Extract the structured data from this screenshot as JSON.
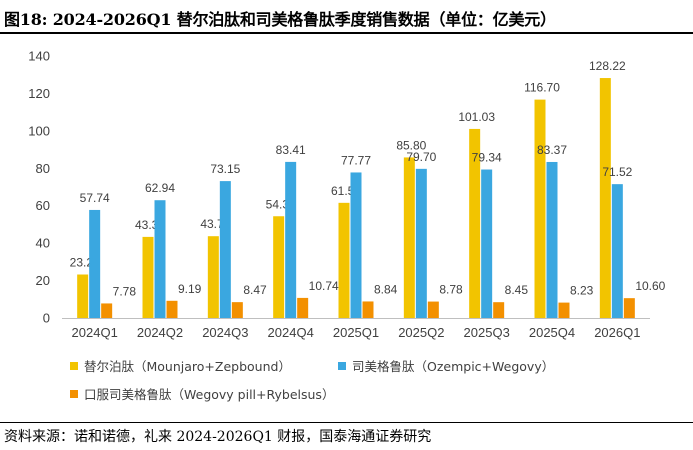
{
  "header": {
    "title": "图18:  2024-2026Q1 替尔泊肽和司美格鲁肽季度销售数据（单位：亿美元）"
  },
  "footer": {
    "source": "资料来源：诺和诺德，礼来 2024-2026Q1 财报，国泰海通证券研究"
  },
  "chart_data": {
    "type": "bar",
    "title": "",
    "xlabel": "",
    "ylabel": "",
    "ylim": [
      0,
      140
    ],
    "yticks": [
      0,
      20,
      40,
      60,
      80,
      100,
      120,
      140
    ],
    "grid": false,
    "legend_position": "bottom",
    "categories": [
      "2024Q1",
      "2024Q2",
      "2024Q3",
      "2024Q4",
      "2025Q1",
      "2025Q2",
      "2025Q3",
      "2025Q4",
      "2026Q1"
    ],
    "series": [
      {
        "name": "替尔泊肽（Mounjaro+Zepbound）",
        "color": "#f2c400",
        "values": [
          23.24,
          43.34,
          43.71,
          54.37,
          61.54,
          85.8,
          101.03,
          116.7,
          128.22
        ]
      },
      {
        "name": "司美格鲁肽（Ozempic+Wegovy）",
        "color": "#3aa7e0",
        "values": [
          57.74,
          62.94,
          73.15,
          83.41,
          77.77,
          79.7,
          79.34,
          83.37,
          71.52
        ]
      },
      {
        "name": "口服司美格鲁肽（Wegovy pill+Rybelsus）",
        "color": "#f39000",
        "values": [
          7.78,
          9.19,
          8.47,
          10.74,
          8.84,
          8.78,
          8.45,
          8.23,
          10.6
        ]
      }
    ]
  }
}
